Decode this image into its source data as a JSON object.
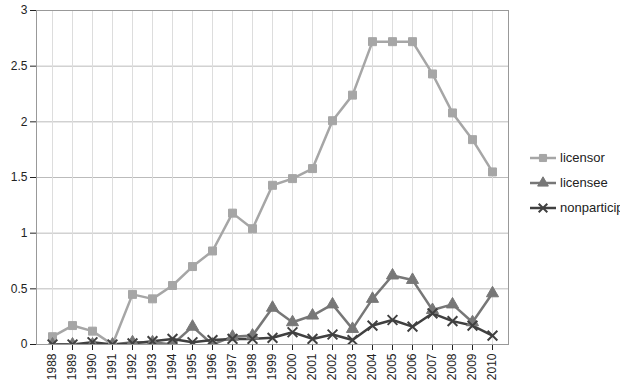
{
  "chart_data": {
    "type": "line",
    "categories": [
      "1988",
      "1989",
      "1990",
      "1991",
      "1992",
      "1993",
      "1994",
      "1995",
      "1996",
      "1997",
      "1998",
      "1999",
      "2000",
      "2001",
      "2002",
      "2003",
      "2004",
      "2005",
      "2006",
      "2007",
      "2008",
      "2009",
      "2010"
    ],
    "series": [
      {
        "name": "licensor",
        "color": "#a6a6a6",
        "marker": "square",
        "values": [
          0.07,
          0.17,
          0.12,
          0.0,
          0.45,
          0.41,
          0.53,
          0.7,
          0.84,
          1.18,
          1.04,
          1.43,
          1.49,
          1.58,
          2.01,
          2.24,
          2.72,
          2.72,
          2.72,
          2.43,
          2.08,
          1.84,
          1.55
        ]
      },
      {
        "name": "licensee",
        "color": "#777777",
        "marker": "triangle",
        "values": [
          0.0,
          0.0,
          0.0,
          0.0,
          0.02,
          0.02,
          0.0,
          0.16,
          0.0,
          0.07,
          0.08,
          0.33,
          0.2,
          0.26,
          0.36,
          0.14,
          0.41,
          0.62,
          0.58,
          0.31,
          0.36,
          0.2,
          0.46
        ]
      },
      {
        "name": "nonparticipant",
        "color": "#404040",
        "marker": "times",
        "values": [
          0.0,
          0.0,
          0.02,
          0.0,
          0.01,
          0.03,
          0.05,
          0.02,
          0.04,
          0.05,
          0.05,
          0.06,
          0.11,
          0.05,
          0.09,
          0.04,
          0.17,
          0.22,
          0.16,
          0.28,
          0.21,
          0.17,
          0.08
        ]
      }
    ],
    "ylim": [
      0,
      3
    ],
    "yticks": [
      0,
      0.5,
      1,
      1.5,
      2,
      2.5,
      3
    ],
    "grid": true,
    "legend": "right"
  }
}
